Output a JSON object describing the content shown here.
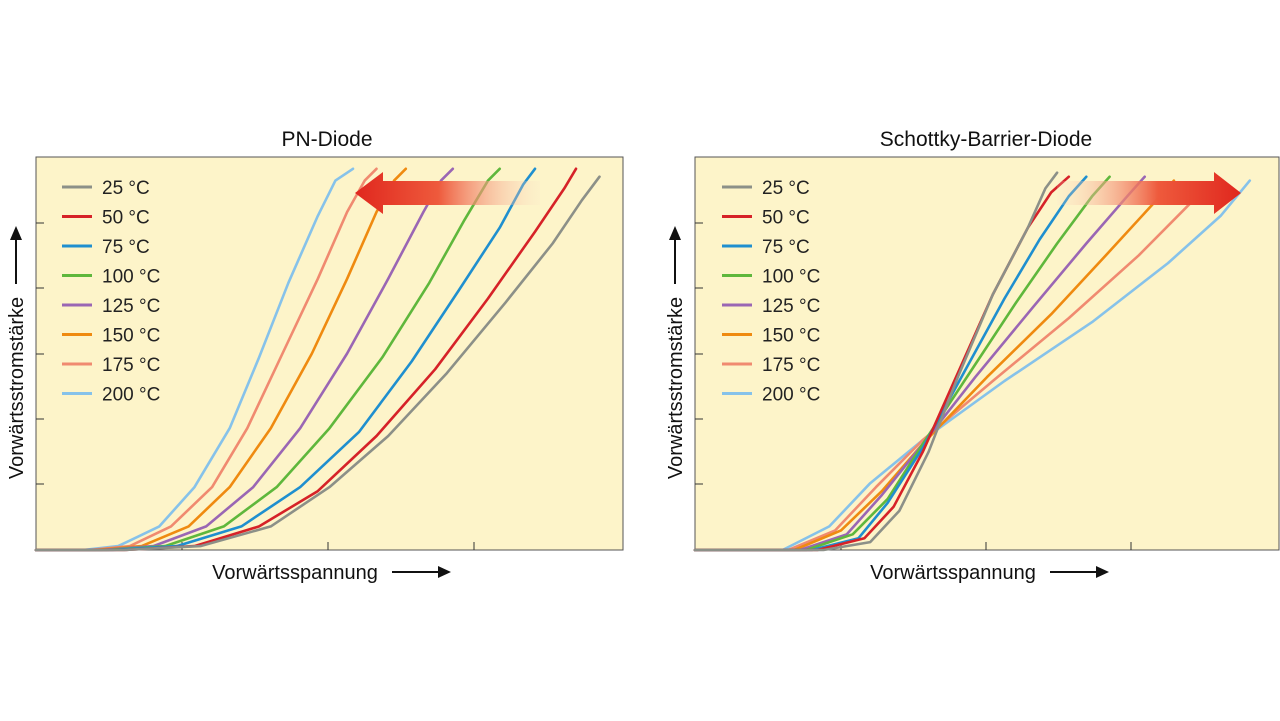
{
  "chart_data": [
    {
      "type": "line",
      "title": "PN-Diode",
      "xlabel": "Vorwärtsspannung",
      "ylabel": "Vorwärtsstromstärke",
      "xlim": [
        0,
        10
      ],
      "ylim": [
        0,
        10
      ],
      "grid": false,
      "legend_position": "top-left",
      "annotation": "arrow pointing left",
      "series": [
        {
          "name": "25 °C",
          "color": "#8c9088",
          "points": [
            [
              0,
              0
            ],
            [
              1.5,
              0
            ],
            [
              2.8,
              0.1
            ],
            [
              4,
              0.6
            ],
            [
              5,
              1.6
            ],
            [
              6,
              2.9
            ],
            [
              7,
              4.5
            ],
            [
              8,
              6.3
            ],
            [
              8.8,
              7.8
            ],
            [
              9.3,
              8.9
            ],
            [
              9.6,
              9.5
            ]
          ]
        },
        {
          "name": "50 °C",
          "color": "#d62228",
          "points": [
            [
              0,
              0
            ],
            [
              1.5,
              0
            ],
            [
              2.7,
              0.1
            ],
            [
              3.8,
              0.6
            ],
            [
              4.8,
              1.5
            ],
            [
              5.8,
              2.9
            ],
            [
              6.8,
              4.6
            ],
            [
              7.7,
              6.4
            ],
            [
              8.5,
              8.1
            ],
            [
              9.0,
              9.2
            ],
            [
              9.2,
              9.7
            ]
          ]
        },
        {
          "name": "75 °C",
          "color": "#1f8fcf",
          "points": [
            [
              0,
              0
            ],
            [
              1.3,
              0
            ],
            [
              2.4,
              0.1
            ],
            [
              3.5,
              0.6
            ],
            [
              4.5,
              1.6
            ],
            [
              5.5,
              3.0
            ],
            [
              6.4,
              4.8
            ],
            [
              7.2,
              6.6
            ],
            [
              7.9,
              8.2
            ],
            [
              8.3,
              9.3
            ],
            [
              8.5,
              9.7
            ]
          ]
        },
        {
          "name": "100 °C",
          "color": "#5fb73c",
          "points": [
            [
              0,
              0
            ],
            [
              1.2,
              0
            ],
            [
              2.2,
              0.1
            ],
            [
              3.2,
              0.6
            ],
            [
              4.1,
              1.6
            ],
            [
              5.0,
              3.1
            ],
            [
              5.9,
              4.9
            ],
            [
              6.7,
              6.8
            ],
            [
              7.3,
              8.4
            ],
            [
              7.7,
              9.4
            ],
            [
              7.9,
              9.7
            ]
          ]
        },
        {
          "name": "125 °C",
          "color": "#9a66b4",
          "points": [
            [
              0,
              0
            ],
            [
              1.1,
              0
            ],
            [
              2.0,
              0.1
            ],
            [
              2.9,
              0.6
            ],
            [
              3.7,
              1.6
            ],
            [
              4.5,
              3.1
            ],
            [
              5.3,
              5.0
            ],
            [
              6.0,
              6.9
            ],
            [
              6.6,
              8.6
            ],
            [
              6.9,
              9.4
            ],
            [
              7.1,
              9.7
            ]
          ]
        },
        {
          "name": "150 °C",
          "color": "#ef8a10",
          "points": [
            [
              0,
              0
            ],
            [
              1.0,
              0
            ],
            [
              1.8,
              0.1
            ],
            [
              2.6,
              0.6
            ],
            [
              3.3,
              1.6
            ],
            [
              4.0,
              3.1
            ],
            [
              4.7,
              5.0
            ],
            [
              5.3,
              6.9
            ],
            [
              5.8,
              8.6
            ],
            [
              6.1,
              9.4
            ],
            [
              6.3,
              9.7
            ]
          ]
        },
        {
          "name": "175 °C",
          "color": "#f08a70",
          "points": [
            [
              0,
              0
            ],
            [
              0.9,
              0
            ],
            [
              1.6,
              0.1
            ],
            [
              2.3,
              0.6
            ],
            [
              3.0,
              1.6
            ],
            [
              3.6,
              3.1
            ],
            [
              4.2,
              5.0
            ],
            [
              4.8,
              6.9
            ],
            [
              5.3,
              8.6
            ],
            [
              5.6,
              9.4
            ],
            [
              5.8,
              9.7
            ]
          ]
        },
        {
          "name": "200 °C",
          "color": "#86c2ea",
          "points": [
            [
              0,
              0
            ],
            [
              0.8,
              0
            ],
            [
              1.4,
              0.1
            ],
            [
              2.1,
              0.6
            ],
            [
              2.7,
              1.6
            ],
            [
              3.3,
              3.1
            ],
            [
              3.8,
              4.9
            ],
            [
              4.3,
              6.8
            ],
            [
              4.8,
              8.5
            ],
            [
              5.1,
              9.4
            ],
            [
              5.4,
              9.7
            ]
          ]
        }
      ]
    },
    {
      "type": "line",
      "title": "Schottky-Barrier-Diode",
      "xlabel": "Vorwärtsspannung",
      "ylabel": "Vorwärtsstromstärke",
      "xlim": [
        0,
        10
      ],
      "ylim": [
        0,
        10
      ],
      "grid": false,
      "legend_position": "top-left",
      "annotation": "arrow pointing right",
      "series": [
        {
          "name": "25 °C",
          "color": "#8c9088",
          "points": [
            [
              0,
              0
            ],
            [
              2.2,
              0
            ],
            [
              3.0,
              0.2
            ],
            [
              3.5,
              1.0
            ],
            [
              4.0,
              2.5
            ],
            [
              4.5,
              4.4
            ],
            [
              5.1,
              6.5
            ],
            [
              5.7,
              8.2
            ],
            [
              6.0,
              9.2
            ],
            [
              6.2,
              9.6
            ]
          ]
        },
        {
          "name": "50 °C",
          "color": "#d62228",
          "points": [
            [
              0,
              0
            ],
            [
              2.1,
              0
            ],
            [
              2.9,
              0.3
            ],
            [
              3.4,
              1.1
            ],
            [
              3.9,
              2.5
            ],
            [
              4.5,
              4.5
            ],
            [
              5.1,
              6.5
            ],
            [
              5.7,
              8.2
            ],
            [
              6.1,
              9.1
            ],
            [
              6.4,
              9.5
            ]
          ]
        },
        {
          "name": "75 °C",
          "color": "#1f8fcf",
          "points": [
            [
              0,
              0
            ],
            [
              2.0,
              0
            ],
            [
              2.8,
              0.3
            ],
            [
              3.3,
              1.2
            ],
            [
              3.9,
              2.6
            ],
            [
              4.6,
              4.5
            ],
            [
              5.3,
              6.4
            ],
            [
              5.9,
              7.9
            ],
            [
              6.4,
              9.0
            ],
            [
              6.7,
              9.5
            ]
          ]
        },
        {
          "name": "100 °C",
          "color": "#5fb73c",
          "points": [
            [
              0,
              0
            ],
            [
              1.9,
              0
            ],
            [
              2.7,
              0.4
            ],
            [
              3.3,
              1.3
            ],
            [
              3.9,
              2.7
            ],
            [
              4.7,
              4.5
            ],
            [
              5.5,
              6.3
            ],
            [
              6.2,
              7.8
            ],
            [
              6.8,
              9.0
            ],
            [
              7.1,
              9.5
            ]
          ]
        },
        {
          "name": "125 °C",
          "color": "#9a66b4",
          "points": [
            [
              0,
              0
            ],
            [
              1.8,
              0
            ],
            [
              2.6,
              0.4
            ],
            [
              3.2,
              1.4
            ],
            [
              3.9,
              2.7
            ],
            [
              4.8,
              4.4
            ],
            [
              5.8,
              6.2
            ],
            [
              6.7,
              7.8
            ],
            [
              7.4,
              9.0
            ],
            [
              7.7,
              9.5
            ]
          ]
        },
        {
          "name": "150 °C",
          "color": "#ef8a10",
          "points": [
            [
              0,
              0
            ],
            [
              1.7,
              0
            ],
            [
              2.5,
              0.5
            ],
            [
              3.2,
              1.5
            ],
            [
              3.9,
              2.7
            ],
            [
              5.0,
              4.4
            ],
            [
              6.1,
              6.0
            ],
            [
              7.1,
              7.6
            ],
            [
              7.9,
              8.9
            ],
            [
              8.2,
              9.4
            ]
          ]
        },
        {
          "name": "175 °C",
          "color": "#f08a70",
          "points": [
            [
              0,
              0
            ],
            [
              1.6,
              0
            ],
            [
              2.4,
              0.5
            ],
            [
              3.1,
              1.6
            ],
            [
              3.9,
              2.8
            ],
            [
              5.1,
              4.3
            ],
            [
              6.4,
              5.9
            ],
            [
              7.6,
              7.5
            ],
            [
              8.4,
              8.7
            ],
            [
              8.8,
              9.3
            ]
          ]
        },
        {
          "name": "200 °C",
          "color": "#86c2ea",
          "points": [
            [
              0,
              0
            ],
            [
              1.5,
              0
            ],
            [
              2.3,
              0.6
            ],
            [
              3.0,
              1.7
            ],
            [
              3.9,
              2.8
            ],
            [
              5.3,
              4.3
            ],
            [
              6.8,
              5.8
            ],
            [
              8.1,
              7.3
            ],
            [
              9.0,
              8.5
            ],
            [
              9.5,
              9.4
            ]
          ]
        }
      ]
    }
  ]
}
